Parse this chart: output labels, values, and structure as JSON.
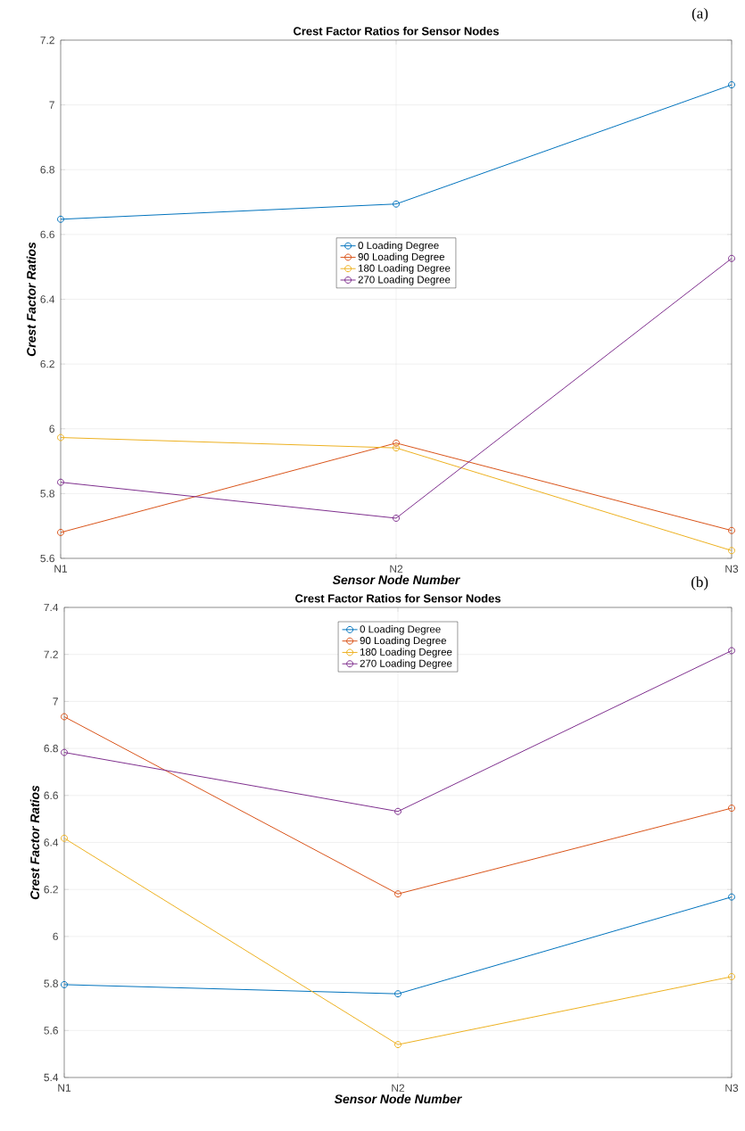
{
  "chart_data": [
    {
      "type": "line",
      "title": "Crest Factor Ratios for Sensor Nodes",
      "xlabel": "Sensor Node Number",
      "ylabel": "Crest Factor Ratios",
      "annotations": [
        "(a)"
      ],
      "categories": [
        "N1",
        "N2",
        "N3"
      ],
      "ylim": [
        5.6,
        7.2
      ],
      "yticks": [
        5.6,
        5.8,
        6,
        6.2,
        6.4,
        6.6,
        6.8,
        7,
        7.2
      ],
      "grid": true,
      "legend": "center",
      "marker": "circle",
      "line_style": "solid",
      "series": [
        {
          "name": "0 Loading Degree",
          "color": "#0072bd",
          "values": [
            6.647,
            6.694,
            7.062
          ]
        },
        {
          "name": "90 Loading Degree",
          "color": "#d95319",
          "values": [
            5.68,
            5.956,
            5.686
          ]
        },
        {
          "name": "180 Loading Degree",
          "color": "#edb120",
          "values": [
            5.973,
            5.941,
            5.624
          ]
        },
        {
          "name": "270 Loading Degree",
          "color": "#7e2f8e",
          "values": [
            5.835,
            5.724,
            6.526
          ]
        }
      ]
    },
    {
      "type": "line",
      "title": "Crest Factor Ratios for Sensor Nodes",
      "xlabel": "Sensor Node Number",
      "ylabel": "Crest Factor Ratios",
      "annotations": [
        "(b)"
      ],
      "categories": [
        "N1",
        "N2",
        "N3"
      ],
      "ylim": [
        5.4,
        7.4
      ],
      "yticks": [
        5.4,
        5.6,
        5.8,
        6,
        6.2,
        6.4,
        6.6,
        6.8,
        7,
        7.2,
        7.4
      ],
      "grid": true,
      "legend": "top",
      "marker": "circle",
      "line_style": "solid",
      "series": [
        {
          "name": "0 Loading Degree",
          "color": "#0072bd",
          "values": [
            5.795,
            5.756,
            6.168
          ]
        },
        {
          "name": "90 Loading Degree",
          "color": "#d95319",
          "values": [
            6.935,
            6.181,
            6.546
          ]
        },
        {
          "name": "180 Loading Degree",
          "color": "#edb120",
          "values": [
            6.418,
            5.54,
            5.829
          ]
        },
        {
          "name": "270 Loading Degree",
          "color": "#7e2f8e",
          "values": [
            6.783,
            6.532,
            7.216
          ]
        }
      ]
    }
  ]
}
